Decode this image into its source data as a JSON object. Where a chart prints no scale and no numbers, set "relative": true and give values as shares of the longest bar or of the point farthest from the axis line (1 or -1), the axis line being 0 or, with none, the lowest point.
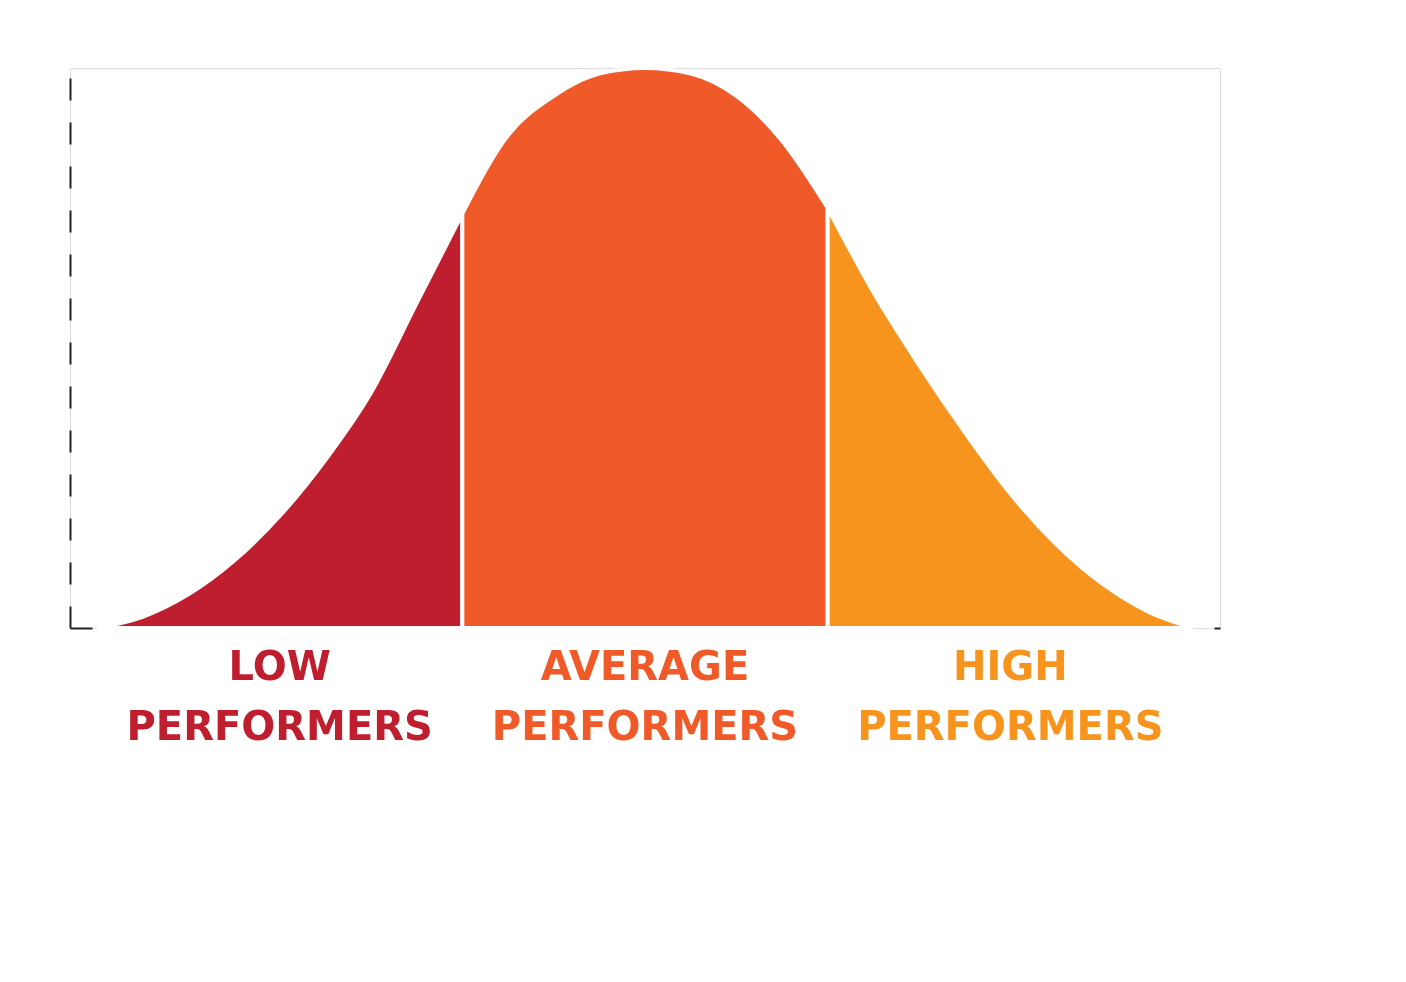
{
  "chart_data": {
    "type": "area",
    "relative": true,
    "grid": false,
    "tick_labels": false,
    "categories": [
      null,
      null,
      null,
      null,
      null,
      null,
      null,
      null,
      null,
      null,
      null,
      null,
      null,
      null,
      null,
      null,
      null,
      null,
      null,
      null,
      null,
      null,
      null,
      null,
      null
    ],
    "series": [
      {
        "name": "LOW PERFORMERS",
        "color": "#be1e2d",
        "values": [
          0,
          0.02,
          0.06,
          0.12,
          0.2,
          0.3,
          0.42,
          0.58,
          0.74,
          null,
          null,
          null,
          null,
          null,
          null,
          null,
          null,
          null,
          null,
          null,
          null,
          null,
          null,
          null,
          null
        ]
      },
      {
        "name": "AVERAGE PERFORMERS",
        "color": "#f05a28",
        "values": [
          null,
          null,
          null,
          null,
          null,
          null,
          null,
          null,
          0.74,
          0.88,
          0.95,
          0.99,
          1,
          0.99,
          0.95,
          0.87,
          0.75,
          null,
          null,
          null,
          null,
          null,
          null,
          null,
          null
        ]
      },
      {
        "name": "HIGH PERFORMERS",
        "color": "#f7941d",
        "values": [
          null,
          null,
          null,
          null,
          null,
          null,
          null,
          null,
          null,
          null,
          null,
          null,
          null,
          null,
          null,
          null,
          0.75,
          0.6,
          0.47,
          0.35,
          0.24,
          0.15,
          0.08,
          0.03,
          0
        ]
      }
    ]
  }
}
